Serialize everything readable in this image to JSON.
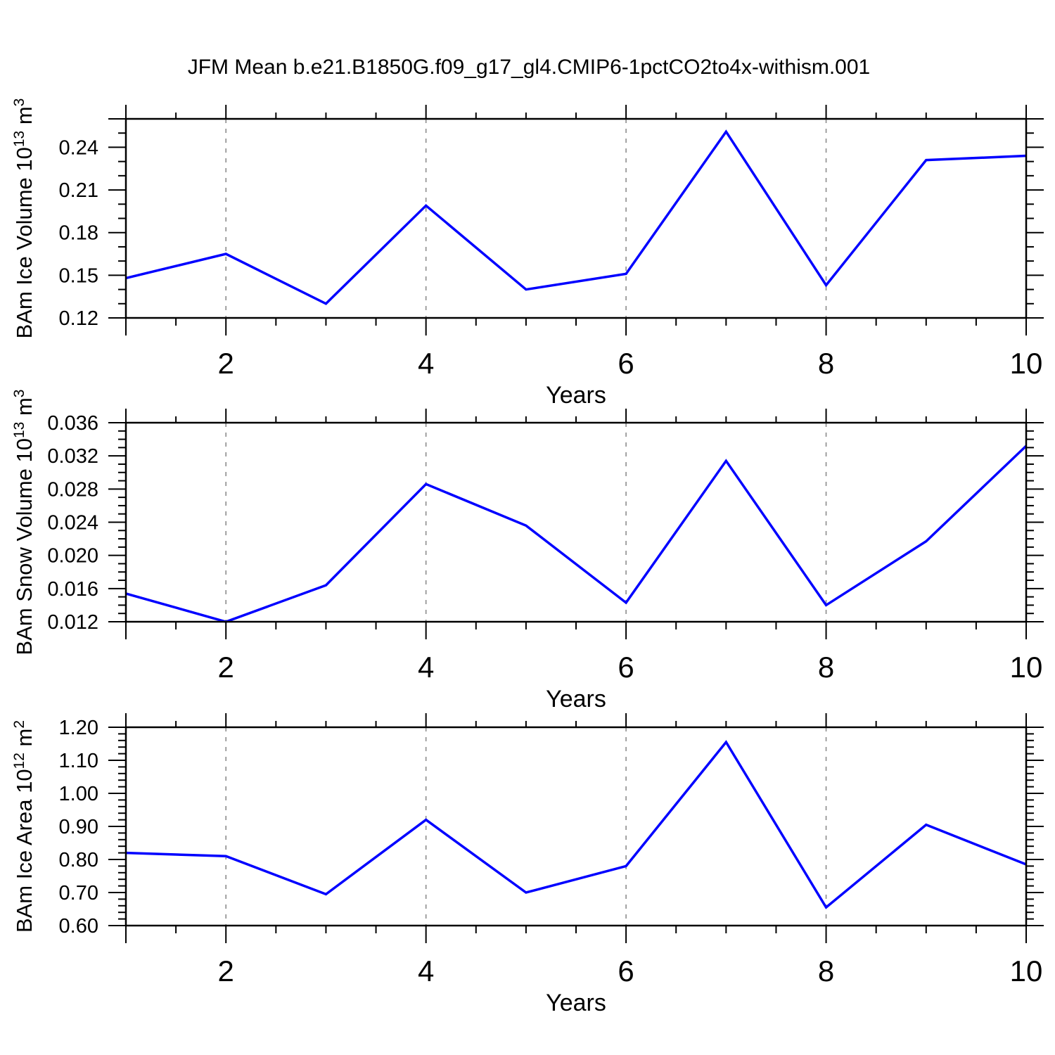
{
  "title": "JFM Mean b.e21.B1850G.f09_g17_gl4.CMIP6-1pctCO2to4x-withism.001",
  "colors": {
    "line": "#0000ff",
    "grid": "#8c8c8c",
    "axis": "#000000",
    "text": "#000000",
    "background": "#ffffff"
  },
  "chart_data": [
    {
      "type": "line",
      "name": "ice-volume",
      "ylabel_parts": [
        {
          "t": "BAm Ice Volume 10",
          "sup": false
        },
        {
          "t": "13",
          "sup": true
        },
        {
          "t": " m",
          "sup": false
        },
        {
          "t": "3",
          "sup": true
        }
      ],
      "xlabel": "Years",
      "x": [
        1,
        2,
        3,
        4,
        5,
        6,
        7,
        8,
        9,
        10
      ],
      "values": [
        0.148,
        0.165,
        0.13,
        0.199,
        0.14,
        0.151,
        0.251,
        0.143,
        0.231,
        0.234
      ],
      "xlim": [
        1,
        10
      ],
      "ylim": [
        0.12,
        0.26
      ],
      "xticks": [
        {
          "v": 2,
          "label": "2"
        },
        {
          "v": 4,
          "label": "4"
        },
        {
          "v": 6,
          "label": "6"
        },
        {
          "v": 8,
          "label": "8"
        },
        {
          "v": 10,
          "label": "10"
        }
      ],
      "yticks": [
        {
          "v": 0.12,
          "label": "0.12"
        },
        {
          "v": 0.15,
          "label": "0.15"
        },
        {
          "v": 0.18,
          "label": "0.18"
        },
        {
          "v": 0.21,
          "label": "0.21"
        },
        {
          "v": 0.24,
          "label": "0.24"
        }
      ],
      "x_minor_step": 0.5,
      "y_minor_step": 0.01,
      "grid_x": [
        2,
        4,
        6,
        8
      ],
      "grid_on": "vertical-dashed",
      "legend": "none"
    },
    {
      "type": "line",
      "name": "snow-volume",
      "ylabel_parts": [
        {
          "t": "BAm Snow Volume 10",
          "sup": false
        },
        {
          "t": "13",
          "sup": true
        },
        {
          "t": " m",
          "sup": false
        },
        {
          "t": "3",
          "sup": true
        }
      ],
      "xlabel": "Years",
      "x": [
        1,
        2,
        3,
        4,
        5,
        6,
        7,
        8,
        9,
        10
      ],
      "values": [
        0.0154,
        0.012,
        0.0164,
        0.0286,
        0.0236,
        0.0143,
        0.0314,
        0.014,
        0.0217,
        0.0332
      ],
      "xlim": [
        1,
        10
      ],
      "ylim": [
        0.012,
        0.036
      ],
      "xticks": [
        {
          "v": 2,
          "label": "2"
        },
        {
          "v": 4,
          "label": "4"
        },
        {
          "v": 6,
          "label": "6"
        },
        {
          "v": 8,
          "label": "8"
        },
        {
          "v": 10,
          "label": "10"
        }
      ],
      "yticks": [
        {
          "v": 0.012,
          "label": "0.012"
        },
        {
          "v": 0.016,
          "label": "0.016"
        },
        {
          "v": 0.02,
          "label": "0.020"
        },
        {
          "v": 0.024,
          "label": "0.024"
        },
        {
          "v": 0.028,
          "label": "0.028"
        },
        {
          "v": 0.032,
          "label": "0.032"
        },
        {
          "v": 0.036,
          "label": "0.036"
        }
      ],
      "x_minor_step": 0.5,
      "y_minor_step": 0.001,
      "grid_x": [
        2,
        4,
        6,
        8
      ],
      "grid_on": "vertical-dashed",
      "legend": "none"
    },
    {
      "type": "line",
      "name": "ice-area",
      "ylabel_parts": [
        {
          "t": "BAm Ice Area 10",
          "sup": false
        },
        {
          "t": "12",
          "sup": true
        },
        {
          "t": " m",
          "sup": false
        },
        {
          "t": "2",
          "sup": true
        }
      ],
      "xlabel": "Years",
      "x": [
        1,
        2,
        3,
        4,
        5,
        6,
        7,
        8,
        9,
        10
      ],
      "values": [
        0.82,
        0.81,
        0.695,
        0.92,
        0.7,
        0.78,
        1.155,
        0.655,
        0.905,
        0.785
      ],
      "xlim": [
        1,
        10
      ],
      "ylim": [
        0.6,
        1.2
      ],
      "xticks": [
        {
          "v": 2,
          "label": "2"
        },
        {
          "v": 4,
          "label": "4"
        },
        {
          "v": 6,
          "label": "6"
        },
        {
          "v": 8,
          "label": "8"
        },
        {
          "v": 10,
          "label": "10"
        }
      ],
      "yticks": [
        {
          "v": 0.6,
          "label": "0.60"
        },
        {
          "v": 0.7,
          "label": "0.70"
        },
        {
          "v": 0.8,
          "label": "0.80"
        },
        {
          "v": 0.9,
          "label": "0.90"
        },
        {
          "v": 1.0,
          "label": "1.00"
        },
        {
          "v": 1.1,
          "label": "1.10"
        },
        {
          "v": 1.2,
          "label": "1.20"
        }
      ],
      "x_minor_step": 0.5,
      "y_minor_step": 0.02,
      "grid_x": [
        2,
        4,
        6,
        8
      ],
      "grid_on": "vertical-dashed",
      "legend": "none"
    }
  ]
}
